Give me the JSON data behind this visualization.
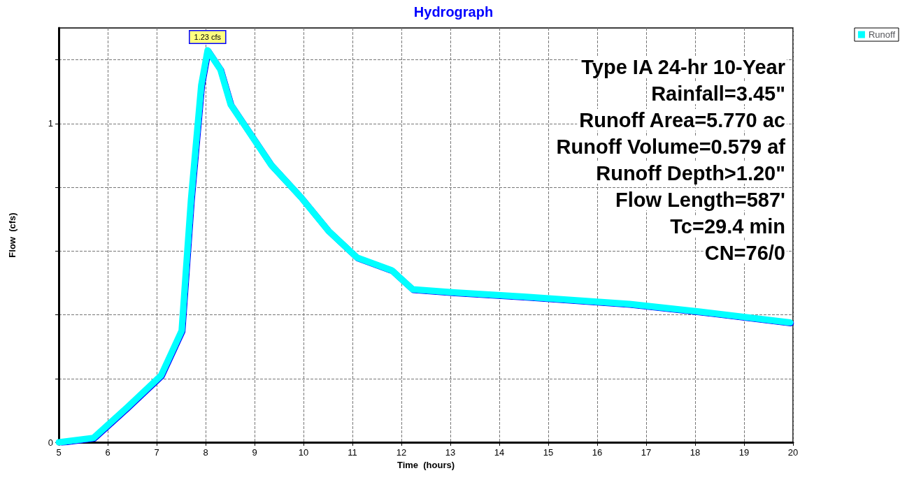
{
  "chart_data": {
    "type": "line",
    "title": "Hydrograph",
    "xlabel": "Time  (hours)",
    "ylabel": "Flow  (cfs)",
    "x": [
      5,
      5.71,
      6.4,
      7.09,
      7.51,
      7.7,
      7.91,
      8.04,
      8.3,
      8.51,
      9.34,
      9.94,
      10.5,
      11.09,
      11.8,
      12.23,
      13.09,
      14.5,
      16.66,
      18.1,
      19.94
    ],
    "series": [
      {
        "name": "Runoff",
        "color": "#00ffff",
        "values": [
          0,
          0.014,
          0.11,
          0.21,
          0.35,
          0.76,
          1.12,
          1.23,
          1.17,
          1.06,
          0.87,
          0.77,
          0.665,
          0.58,
          0.54,
          0.48,
          0.47,
          0.457,
          0.434,
          0.41,
          0.376
        ]
      }
    ],
    "xlim": [
      5,
      20
    ],
    "xticks": [
      5,
      6,
      7,
      8,
      9,
      10,
      11,
      12,
      13,
      14,
      15,
      16,
      17,
      18,
      19,
      20
    ],
    "ylim": [
      0,
      1.3
    ],
    "yticks": [
      0,
      {
        "value": 0.2,
        "label": null
      },
      {
        "value": 0.4,
        "label": null
      },
      {
        "value": 0.6,
        "label": null
      },
      {
        "value": 0.8,
        "label": null
      },
      1,
      {
        "value": 1.2,
        "label": null
      }
    ],
    "annotations": [
      {
        "text": "1.23 cfs",
        "x": 8.04,
        "y": 1.23
      },
      "Type IA 24-hr 10-Year",
      "Rainfall=3.45\"",
      "Runoff Area=5.770 ac",
      "Runoff Volume=0.579 af",
      "Runoff Depth>1.20\"",
      "Flow Length=587'",
      "Tc=29.4 min",
      "CN=76/0"
    ],
    "grid": true,
    "legend": "top right",
    "marker": "none",
    "line_style": "solid"
  }
}
